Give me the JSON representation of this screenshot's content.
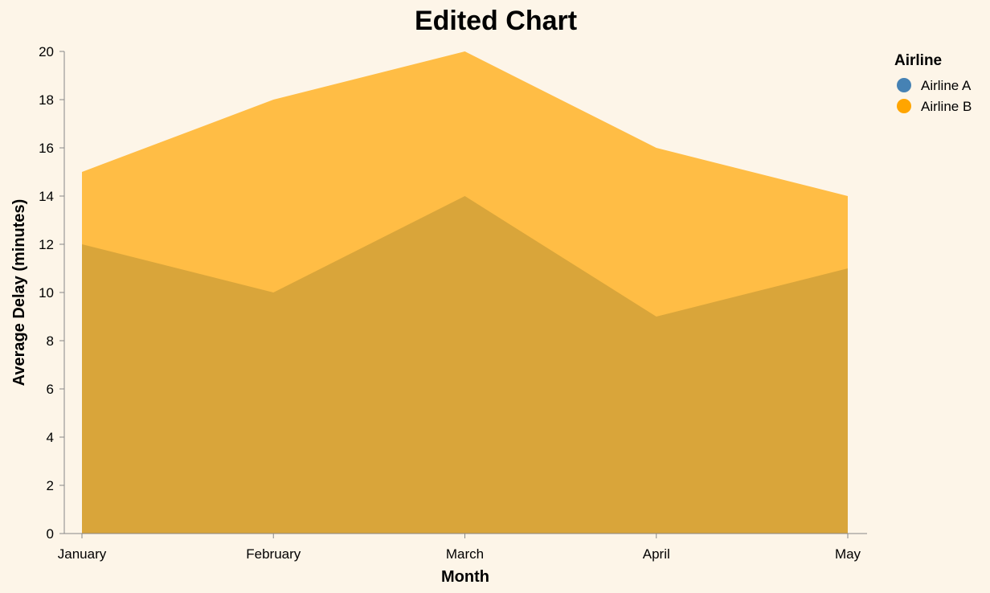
{
  "chart_data": {
    "type": "area",
    "title": "Edited Chart",
    "xlabel": "Month",
    "ylabel": "Average Delay (minutes)",
    "categories": [
      "January",
      "February",
      "March",
      "April",
      "May"
    ],
    "ylim": [
      0,
      20
    ],
    "yticks": [
      0,
      2,
      4,
      6,
      8,
      10,
      12,
      14,
      16,
      18,
      20
    ],
    "stacked": false,
    "series": [
      {
        "name": "Airline A",
        "values": [
          12,
          10,
          14,
          9,
          11
        ],
        "color": "#4682b4"
      },
      {
        "name": "Airline B",
        "values": [
          15,
          18,
          20,
          16,
          14
        ],
        "color": "#ffa500"
      }
    ],
    "overlap_color": "#d9a53a",
    "legend": {
      "title": "Airline",
      "position": "top-right"
    }
  }
}
